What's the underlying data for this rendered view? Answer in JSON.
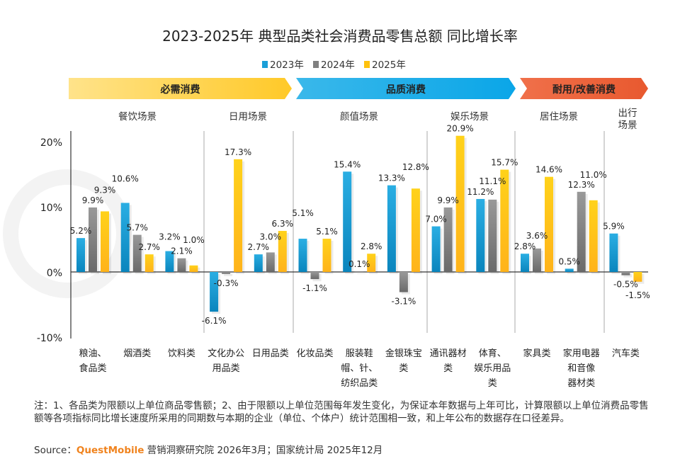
{
  "chart_data": {
    "type": "bar",
    "title": "2023-2025年 典型品类社会消费品零售总额 同比增长率",
    "legend_position": "top",
    "ylim": [
      -10,
      20
    ],
    "yticks": [
      "20%",
      "10%",
      "0%",
      "-10%"
    ],
    "ytick_values": [
      20,
      10,
      0,
      -10
    ],
    "categories": [
      "粮油、食品类",
      "烟酒类",
      "饮料类",
      "文化办公用品类",
      "日用品类",
      "化妆品类",
      "服装鞋帽、针、纺织品类",
      "金银珠宝类",
      "通讯器材类",
      "体育、娱乐用品类",
      "家具类",
      "家用电器和音像器材类",
      "汽车类"
    ],
    "category_lines": [
      [
        "粮油、",
        "食品类"
      ],
      [
        "烟酒类"
      ],
      [
        "饮料类"
      ],
      [
        "文化办公",
        "用品类"
      ],
      [
        "日用品类"
      ],
      [
        "化妆品类"
      ],
      [
        "服装鞋",
        "帽、针、",
        "纺织品类"
      ],
      [
        "金银珠宝",
        "类"
      ],
      [
        "通讯器材",
        "类"
      ],
      [
        "体育、",
        "娱乐用品",
        "类"
      ],
      [
        "家具类"
      ],
      [
        "家用电器",
        "和音像",
        "器材类"
      ],
      [
        "汽车类"
      ]
    ],
    "series": [
      {
        "name": "2023年",
        "color": "#1a9fd8",
        "values": [
          5.2,
          10.6,
          3.2,
          -6.1,
          2.7,
          5.1,
          15.4,
          13.3,
          7.0,
          11.2,
          2.8,
          0.5,
          5.9
        ]
      },
      {
        "name": "2024年",
        "color": "#808080",
        "values": [
          9.9,
          5.7,
          2.1,
          -0.3,
          3.0,
          -1.1,
          0.1,
          -3.1,
          9.9,
          11.1,
          3.6,
          12.3,
          -0.5
        ]
      },
      {
        "name": "2025年",
        "color": "#ffc20e",
        "values": [
          9.3,
          2.7,
          1.0,
          17.3,
          6.3,
          5.1,
          2.8,
          12.8,
          20.9,
          15.7,
          14.6,
          11.0,
          -1.5
        ]
      }
    ],
    "scenes": [
      {
        "label": "餐饮场景",
        "lines": [
          "餐饮场景"
        ],
        "from": 0,
        "to": 2
      },
      {
        "label": "日用场景",
        "lines": [
          "日用场景"
        ],
        "from": 3,
        "to": 4
      },
      {
        "label": "颜值场景",
        "lines": [
          "颜值场景"
        ],
        "from": 5,
        "to": 7
      },
      {
        "label": "娱乐场景",
        "lines": [
          "娱乐场景"
        ],
        "from": 8,
        "to": 9
      },
      {
        "label": "居住场景",
        "lines": [
          "居住场景"
        ],
        "from": 10,
        "to": 11
      },
      {
        "label": "出行场景",
        "lines": [
          "出行",
          "场景"
        ],
        "from": 12,
        "to": 12
      }
    ],
    "bands": [
      {
        "label": "必需消费",
        "colors": [
          "#ffe38a",
          "#ffc928"
        ]
      },
      {
        "label": "品质消费",
        "colors": [
          "#3ab8ea",
          "#0aa6e8"
        ]
      },
      {
        "label": "耐用/改善消费",
        "colors": [
          "#f0704a",
          "#e8592f"
        ]
      }
    ],
    "grid": false
  },
  "footnote": "注：1、各品类为限额以上单位商品零售额；2、由于限额以上单位范围每年发生变化，为保证本年数据与上年可比，计算限额以上单位消费品零售额等各项指标同比增长速度所采用的同期数与本期的企业（单位、个体户）统计范围相一致，和上年公布的数据存在口径差异。",
  "source": {
    "prefix": "Source：",
    "brand": "QuestMobile",
    "rest": " 营销洞察研究院 2026年3月；国家统计局 2025年12月"
  },
  "watermark": "QUESTMOBILE"
}
